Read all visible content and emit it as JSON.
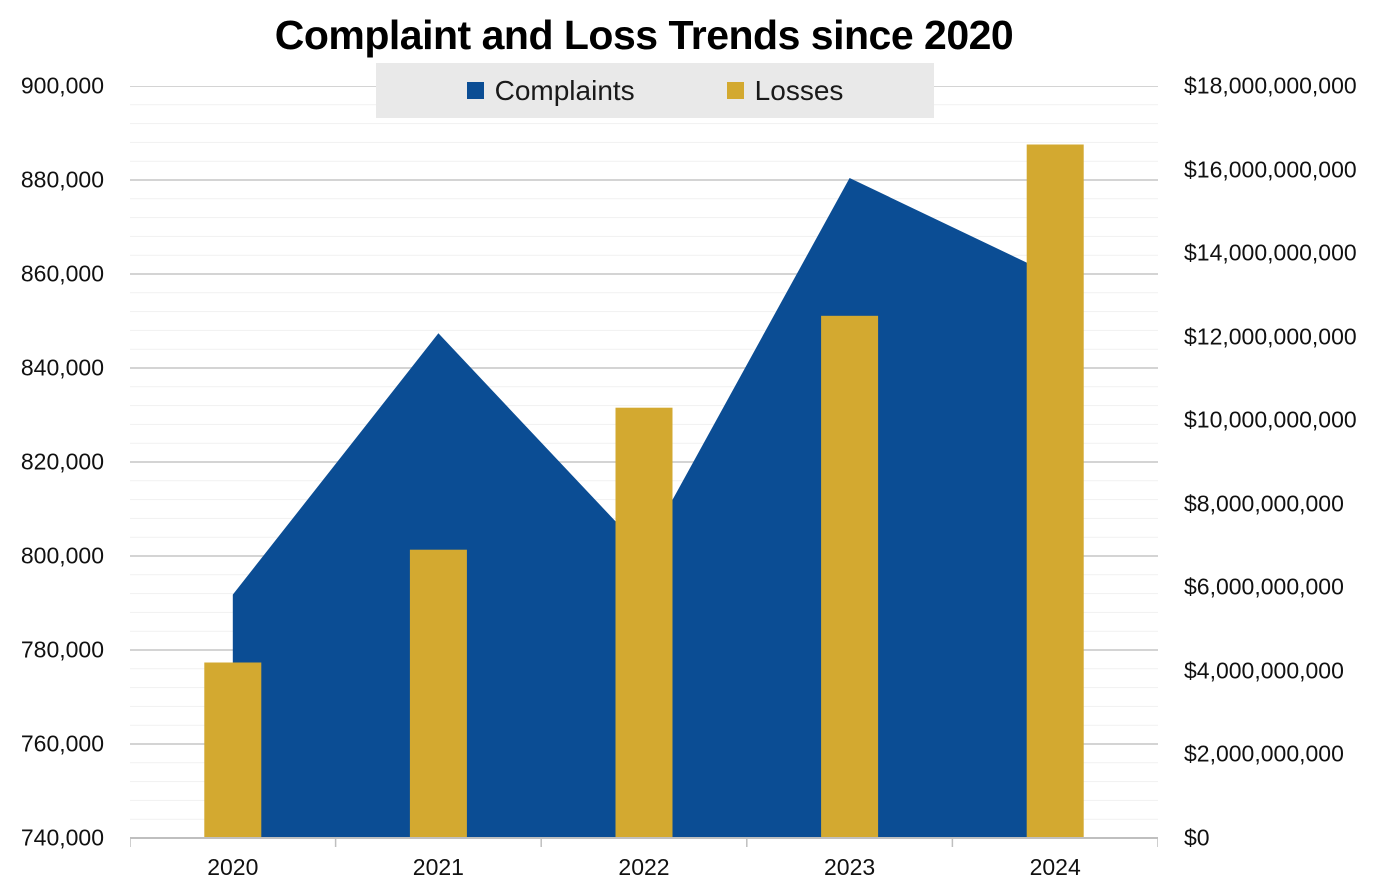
{
  "title": "Complaint and Loss Trends since 2020",
  "colors": {
    "complaints_blue": "#0B4D94",
    "losses_gold": "#D3A930",
    "legend_background": "#E9E9E9",
    "major_gridline": "#D4D4D4",
    "minor_gridline": "#F1F1F1",
    "axis_line": "#BFBFBF",
    "text": "#111111",
    "title_text": "#000000"
  },
  "legend": {
    "items": [
      {
        "label": "Complaints",
        "swatch": "complaints-swatch"
      },
      {
        "label": "Losses",
        "swatch": "losses-swatch"
      }
    ]
  },
  "chart_data": {
    "type": "combo (area + bar)",
    "title": "Complaint and Loss Trends since 2020",
    "categories": [
      "2020",
      "2021",
      "2022",
      "2023",
      "2024"
    ],
    "series": [
      {
        "name": "Complaints",
        "type": "area",
        "axis": "left",
        "color": "#0B4D94",
        "values": [
          791790,
          847376,
          800944,
          880418,
          859532
        ]
      },
      {
        "name": "Losses",
        "type": "bar",
        "axis": "right",
        "color": "#D3A930",
        "values": [
          4200000000,
          6900000000,
          10300000000,
          12500000000,
          16600000000
        ]
      }
    ],
    "left_axis": {
      "min": 740000,
      "max": 900000,
      "major_step": 20000,
      "minor_step": 4000,
      "tick_labels": [
        "900,000",
        "880,000",
        "860,000",
        "840,000",
        "820,000",
        "800,000",
        "780,000",
        "760,000",
        "740,000"
      ]
    },
    "right_axis": {
      "min": 0,
      "max": 18000000000,
      "major_step": 2000000000,
      "tick_labels": [
        "$18,000,000,000",
        "$16,000,000,000",
        "$14,000,000,000",
        "$12,000,000,000",
        "$10,000,000,000",
        "$8,000,000,000",
        "$6,000,000,000",
        "$4,000,000,000",
        "$2,000,000,000",
        "$0"
      ]
    },
    "xlabel": "",
    "ylabel": "",
    "legend_position": "top",
    "grid": "horizontal major + minor gridlines from left axis"
  }
}
